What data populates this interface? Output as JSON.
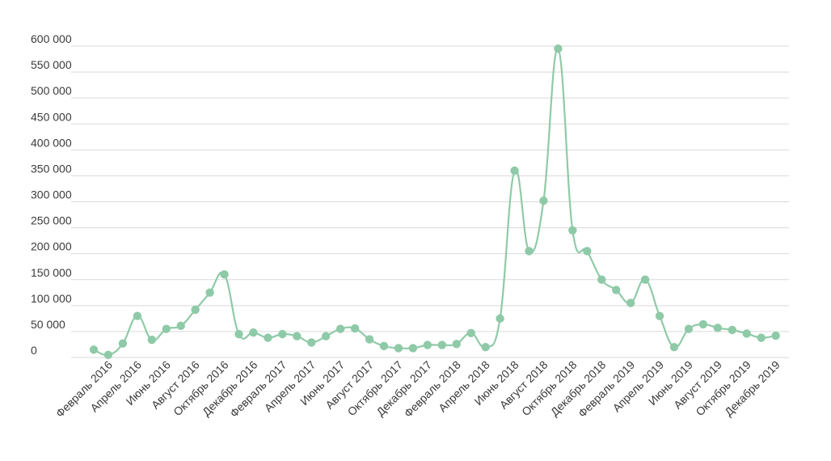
{
  "chart_data": {
    "type": "line",
    "title": "",
    "xlabel": "",
    "ylabel": "",
    "ylim": [
      0,
      600000
    ],
    "yticks": [
      0,
      50000,
      100000,
      150000,
      200000,
      250000,
      300000,
      350000,
      400000,
      450000,
      500000,
      550000,
      600000
    ],
    "ytick_labels": [
      "0",
      "50 000",
      "100 000",
      "150 000",
      "200 000",
      "250 000",
      "300 000",
      "350 000",
      "400 000",
      "450 000",
      "500 000",
      "550 000",
      "600 000"
    ],
    "grid": true,
    "legend": "none",
    "color": "#8fcaa8",
    "x": [
      "Январь 2016",
      "Февраль 2016",
      "Март 2016",
      "Апрель 2016",
      "Май 2016",
      "Июнь 2016",
      "Июль 2016",
      "Август 2016",
      "Сентябрь 2016",
      "Октябрь 2016",
      "Ноябрь 2016",
      "Декабрь 2016",
      "Январь 2017",
      "Февраль 2017",
      "Март 2017",
      "Апрель 2017",
      "Май 2017",
      "Июнь 2017",
      "Июль 2017",
      "Август 2017",
      "Сентябрь 2017",
      "Октябрь 2017",
      "Ноябрь 2017",
      "Декабрь 2017",
      "Январь 2018",
      "Февраль 2018",
      "Март 2018",
      "Апрель 2018",
      "Май 2018",
      "Июнь 2018",
      "Июль 2018",
      "Август 2018",
      "Сентябрь 2018",
      "Октябрь 2018",
      "Ноябрь 2018",
      "Декабрь 2018",
      "Январь 2019",
      "Февраль 2019",
      "Март 2019",
      "Апрель 2019",
      "Май 2019",
      "Июнь 2019",
      "Июль 2019",
      "Август 2019",
      "Сентябрь 2019",
      "Октябрь 2019",
      "Ноябрь 2019",
      "Декабрь 2019"
    ],
    "x_tick_labels": [
      "",
      "Февраль 2016",
      "",
      "Апрель 2016",
      "",
      "Июнь 2016",
      "",
      "Август 2016",
      "",
      "Октябрь 2016",
      "",
      "Декабрь 2016",
      "",
      "Февраль 2017",
      "",
      "Апрель 2017",
      "",
      "Июнь 2017",
      "",
      "Август 2017",
      "",
      "Октябрь 2017",
      "",
      "Декабрь 2017",
      "",
      "Февраль 2018",
      "",
      "Апрель 2018",
      "",
      "Июнь 2018",
      "",
      "Август 2018",
      "",
      "Октябрь 2018",
      "",
      "Декабрь 2018",
      "",
      "Февраль 2019",
      "",
      "Апрель 2019",
      "",
      "Июнь 2019",
      "",
      "Август 2019",
      "",
      "Октябрь 2019",
      "",
      "Декабрь 2019"
    ],
    "series": [
      {
        "values": [
          15000,
          5000,
          27000,
          80000,
          34000,
          55000,
          61000,
          92000,
          125000,
          160000,
          45000,
          48000,
          38000,
          45000,
          41000,
          29000,
          41000,
          55000,
          56000,
          35000,
          22000,
          18000,
          18000,
          24000,
          24000,
          26000,
          47000,
          20000,
          75000,
          360000,
          205000,
          302000,
          595000,
          245000,
          205000,
          150000,
          130000,
          105000,
          150000,
          80000,
          20000,
          55000,
          64000,
          57000,
          53000,
          46000,
          38000,
          42000
        ]
      }
    ]
  }
}
